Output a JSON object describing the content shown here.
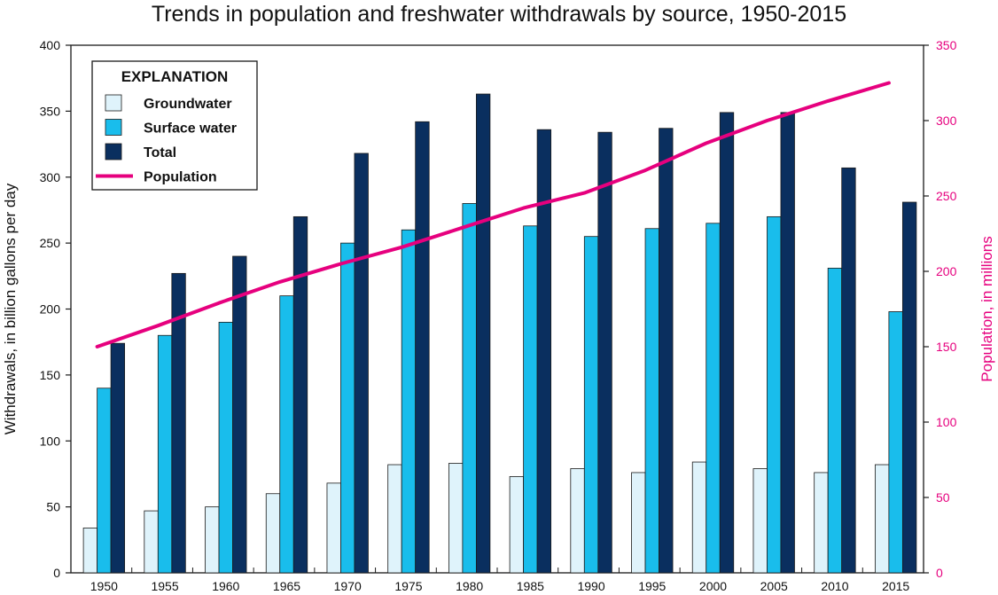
{
  "title": "Trends in population and freshwater withdrawals by source, 1950-2015",
  "colors": {
    "groundwater": "#dff3fb",
    "surface_water": "#19bdec",
    "total": "#0a2f5f",
    "population": "#e6007e",
    "bar_stroke": "#1a1a1a"
  },
  "legend": {
    "title": "EXPLANATION",
    "items": [
      {
        "key": "groundwater",
        "label": "Groundwater",
        "kind": "box"
      },
      {
        "key": "surface_water",
        "label": "Surface water",
        "kind": "box"
      },
      {
        "key": "total",
        "label": "Total",
        "kind": "box"
      },
      {
        "key": "population",
        "label": "Population",
        "kind": "line"
      }
    ]
  },
  "chart_data": {
    "type": "bar",
    "title": "Trends in population and freshwater withdrawals by source, 1950-2015",
    "xlabel": "",
    "ylabel": "Withdrawals, in billion gallons per day",
    "y2label": "Population, in millions",
    "categories": [
      "1950",
      "1955",
      "1960",
      "1965",
      "1970",
      "1975",
      "1980",
      "1985",
      "1990",
      "1995",
      "2000",
      "2005",
      "2010",
      "2015"
    ],
    "ylim": [
      0,
      400
    ],
    "yticks": [
      0,
      50,
      100,
      150,
      200,
      250,
      300,
      350,
      400
    ],
    "y2lim": [
      0,
      350
    ],
    "y2ticks": [
      0,
      50,
      100,
      150,
      200,
      250,
      300,
      350
    ],
    "legend_position": "top-left",
    "grid": false,
    "series": [
      {
        "name": "Groundwater",
        "axis": "left",
        "type": "bar",
        "values": [
          34,
          47,
          50,
          60,
          68,
          82,
          83,
          73,
          79,
          76,
          84,
          79,
          76,
          82
        ]
      },
      {
        "name": "Surface water",
        "axis": "left",
        "type": "bar",
        "values": [
          140,
          180,
          190,
          210,
          250,
          260,
          280,
          263,
          255,
          261,
          265,
          270,
          231,
          198
        ]
      },
      {
        "name": "Total",
        "axis": "left",
        "type": "bar",
        "values": [
          174,
          227,
          240,
          270,
          318,
          342,
          363,
          336,
          334,
          337,
          349,
          349,
          307,
          281
        ]
      },
      {
        "name": "Population",
        "axis": "right",
        "type": "line",
        "values": [
          150,
          164,
          179,
          193,
          205,
          216,
          229,
          242,
          252,
          267,
          285,
          300,
          313,
          325
        ]
      }
    ]
  }
}
